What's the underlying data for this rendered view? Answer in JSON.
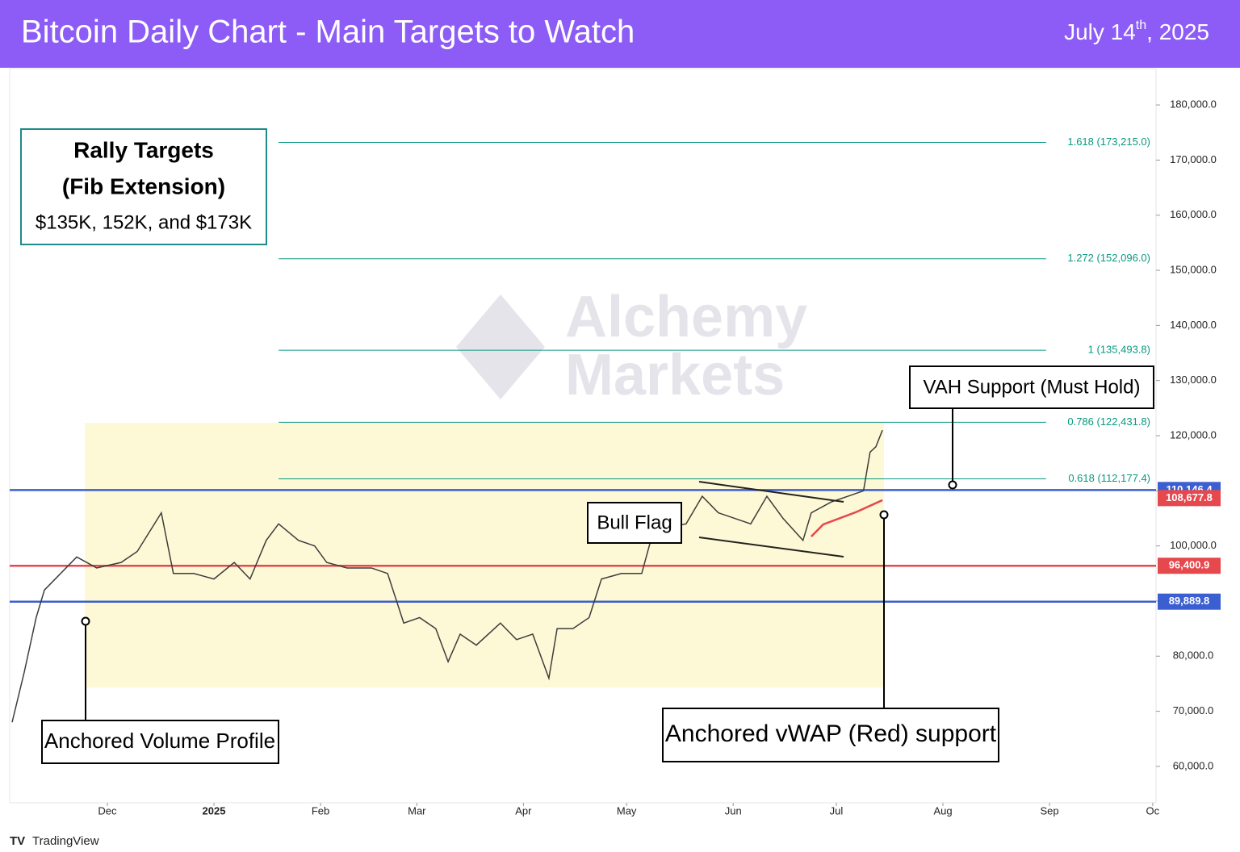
{
  "chart_data": {
    "type": "line",
    "title": "Bitcoin Daily Chart - Main Targets to Watch",
    "date": {
      "main": "July 14",
      "sup": "th",
      "rest": ", 2025"
    },
    "watermark": [
      "Alchemy",
      "Markets"
    ],
    "brand": "TradingView",
    "xlim": [
      -28.4,
      304.5
    ],
    "xticks": [
      {
        "value": 0,
        "label": "Dec"
      },
      {
        "value": 31,
        "label": "2025"
      },
      {
        "value": 62,
        "label": "Feb"
      },
      {
        "value": 90,
        "label": "Mar"
      },
      {
        "value": 121,
        "label": "Apr"
      },
      {
        "value": 151,
        "label": "May"
      },
      {
        "value": 182,
        "label": "Jun"
      },
      {
        "value": 212,
        "label": "Jul"
      },
      {
        "value": 243,
        "label": "Aug"
      },
      {
        "value": 274,
        "label": "Sep"
      },
      {
        "value": 304,
        "label": "Oc"
      }
    ],
    "ylim": [
      53400,
      186600
    ],
    "yticks": [
      {
        "value": 60000,
        "label": "60,000.0"
      },
      {
        "value": 70000,
        "label": "70,000.0"
      },
      {
        "value": 80000,
        "label": "80,000.0"
      },
      {
        "value": 90000,
        "label": "90,000.0"
      },
      {
        "value": 100000,
        "label": "100,000.0"
      },
      {
        "value": 110000,
        "label": "110,000.0"
      },
      {
        "value": 120000,
        "label": "120,000.0"
      },
      {
        "value": 130000,
        "label": "130,000.0"
      },
      {
        "value": 140000,
        "label": "140,000.0"
      },
      {
        "value": 150000,
        "label": "150,000.0"
      },
      {
        "value": 160000,
        "label": "160,000.0"
      },
      {
        "value": 170000,
        "label": "170,000.0"
      },
      {
        "value": 180000,
        "label": "180,000.0"
      }
    ],
    "series": [
      {
        "name": "BTC",
        "color": "#3d3d3d",
        "x": [
          -27.7,
          -24.2,
          -20.7,
          -18.3,
          -8.9,
          -3.1,
          4.0,
          8.7,
          15.7,
          19.2,
          25.1,
          31,
          36.9,
          41.5,
          46.2,
          49.8,
          55.6,
          60.3,
          63.8,
          69.7,
          76.8,
          81.5,
          86.2,
          90.8,
          95.5,
          99.1,
          102.6,
          107.3,
          114.3,
          119,
          123.7,
          128.4,
          130.8,
          135.4,
          140.1,
          143.7,
          149.5,
          155.4,
          158.9,
          168.3,
          173,
          177.7,
          182.4,
          187.1,
          191.8,
          196.5,
          202.3,
          204.7,
          210.6,
          215.3,
          219.9,
          221.8,
          223.5,
          225.4
        ],
        "values": [
          68000,
          77000,
          87000,
          92000,
          98000,
          96000,
          97000,
          99000,
          106000,
          95000,
          95000,
          94000,
          97000,
          94000,
          101000,
          104000,
          101000,
          100000,
          97000,
          96000,
          96000,
          95000,
          86000,
          87000,
          85000,
          79000,
          84000,
          82000,
          86000,
          83000,
          84000,
          76000,
          85000,
          85000,
          87000,
          94000,
          95000,
          95000,
          103000,
          104000,
          109000,
          106000,
          105000,
          104000,
          109000,
          105000,
          101000,
          106000,
          108000,
          109000,
          110000,
          117000,
          118000,
          121000
        ]
      },
      {
        "name": "Anchored vWAP",
        "color": "#e5484d",
        "x": [
          204.7,
          208.2,
          217.6,
          225.4
        ],
        "values": [
          101700,
          103900,
          106100,
          108300
        ]
      }
    ],
    "fib_levels": {
      "color": "#089981",
      "x_range": [
        49.8,
        273
      ],
      "values": [
        112177.4,
        122431.8,
        135493.8,
        152096.0,
        173215.0
      ],
      "value_labels": [
        "0.618 (112,177.4)",
        "0.786 (122,431.8)",
        "1 (135,493.8)",
        "1.272 (152,096.0)",
        "1.618 (173,215.0)"
      ]
    },
    "price_levels": [
      {
        "value": 110146.4,
        "label": "110,146.4",
        "color": "#3b5fd0",
        "line": true
      },
      {
        "value": 108677.8,
        "label": "108,677.8",
        "color": "#e5484d",
        "line": false
      },
      {
        "value": 96400.9,
        "label": "96,400.9",
        "color": "#e5484d",
        "line": true
      },
      {
        "value": 89889.8,
        "label": "89,889.8",
        "color": "#3b5fd0",
        "line": true
      }
    ],
    "annotations": {
      "rally": [
        "Rally Targets",
        "(Fib Extension)",
        "$135K, 152K, and $173K"
      ],
      "vah": "VAH Support (Must Hold)",
      "flag": "Bull Flag",
      "vwap": "Anchored vWAP (Red) support",
      "avp": "Anchored Volume Profile"
    }
  }
}
